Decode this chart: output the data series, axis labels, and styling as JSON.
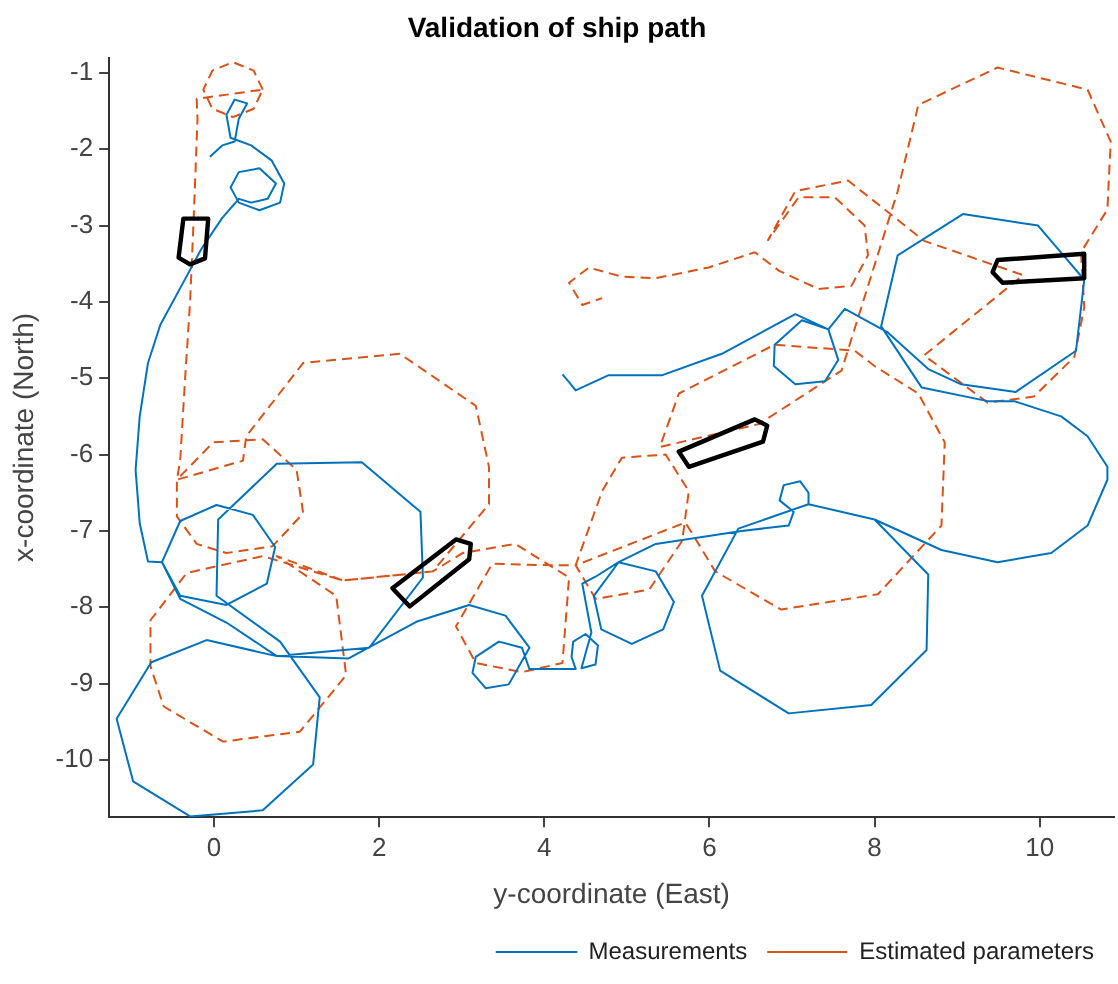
{
  "chart_data": {
    "type": "line",
    "title": "Validation of ship path",
    "xlabel": "y-coordinate (East)",
    "ylabel": "x-coordinate (North)",
    "xlim": [
      -1.27,
      10.9
    ],
    "ylim": [
      -10.75,
      -0.8
    ],
    "xticks": [
      0,
      2,
      4,
      6,
      8,
      10
    ],
    "yticks": [
      -1,
      -2,
      -3,
      -4,
      -5,
      -6,
      -7,
      -8,
      -9,
      -10
    ],
    "grid": false,
    "legend": "bottom right",
    "marker": "none",
    "series": [
      {
        "name": "Measurements",
        "color": "#0072bd",
        "line_style": "solid",
        "x": [
          -0.05,
          0.1,
          0.25,
          0.3,
          0.4,
          0.25,
          0.15,
          0.2,
          0.45,
          0.7,
          0.85,
          0.8,
          0.55,
          0.3,
          0.2,
          0.3,
          0.55,
          0.75,
          0.65,
          0.45,
          0.3,
          0.1,
          -0.15,
          -0.4,
          -0.65,
          -0.8,
          -0.9,
          -0.95,
          -0.9,
          -0.8,
          -0.63,
          -0.41,
          0.03,
          0.47,
          0.74,
          0.64,
          0.15,
          -0.41,
          -0.63,
          -0.41,
          0.15,
          0.76,
          1.88,
          2.53,
          2.5,
          1.79,
          0.76,
          0.05,
          0.03,
          0.8,
          1.28,
          1.2,
          0.59,
          -0.29,
          -0.98,
          -1.18,
          -0.76,
          -0.09,
          0.76,
          1.63,
          2.45,
          3.09,
          3.53,
          3.82,
          3.57,
          3.29,
          3.13,
          3.17,
          3.45,
          3.73,
          3.82,
          4.06,
          4.38,
          4.33,
          4.35,
          4.5,
          4.65,
          4.62,
          4.45,
          4.57,
          4.46,
          4.62,
          4.9,
          5.35,
          5.57,
          5.44,
          5.06,
          4.69,
          4.6,
          4.9,
          5.35,
          6.39,
          6.96,
          7.02,
          6.85,
          6.9,
          7.1,
          7.2,
          7.2,
          8.0,
          8.65,
          8.63,
          7.96,
          6.96,
          6.13,
          5.91,
          6.35,
          7.2,
          8.0,
          8.81,
          9.49,
          10.14,
          10.58,
          10.82,
          10.82,
          10.58,
          10.26,
          9.69,
          9.37,
          8.57,
          8.08,
          8.28,
          9.07,
          9.98,
          10.54,
          10.44,
          9.71,
          9.05,
          8.65,
          8.16,
          7.64,
          7.44,
          7.56,
          7.4,
          7.04,
          6.78,
          6.79,
          7.12,
          7.44,
          7.04,
          6.15,
          5.43,
          4.78,
          4.38,
          4.3,
          4.22
        ],
        "values": [
          -2.1,
          -1.95,
          -1.9,
          -1.6,
          -1.4,
          -1.35,
          -1.55,
          -1.85,
          -1.95,
          -2.15,
          -2.45,
          -2.7,
          -2.8,
          -2.7,
          -2.5,
          -2.3,
          -2.25,
          -2.45,
          -2.65,
          -2.7,
          -2.65,
          -2.9,
          -3.3,
          -3.8,
          -4.3,
          -4.8,
          -5.5,
          -6.2,
          -6.9,
          -7.4,
          -7.41,
          -6.87,
          -6.66,
          -6.79,
          -7.21,
          -7.69,
          -7.97,
          -7.85,
          -7.41,
          -7.89,
          -8.2,
          -8.64,
          -8.53,
          -7.61,
          -6.75,
          -6.1,
          -6.12,
          -6.85,
          -7.85,
          -8.45,
          -9.18,
          -10.06,
          -10.66,
          -10.74,
          -10.28,
          -9.46,
          -8.72,
          -8.43,
          -8.64,
          -8.67,
          -8.19,
          -7.97,
          -8.11,
          -8.53,
          -9.01,
          -9.06,
          -8.86,
          -8.65,
          -8.45,
          -8.53,
          -8.81,
          -8.81,
          -8.81,
          -8.65,
          -8.45,
          -8.35,
          -8.5,
          -8.75,
          -8.8,
          -8.33,
          -7.69,
          -7.6,
          -7.41,
          -7.53,
          -7.93,
          -8.29,
          -8.48,
          -8.29,
          -7.85,
          -7.41,
          -7.17,
          -7.0,
          -6.93,
          -6.75,
          -6.6,
          -6.4,
          -6.35,
          -6.5,
          -6.65,
          -6.85,
          -7.57,
          -8.56,
          -9.28,
          -9.39,
          -8.83,
          -7.85,
          -6.97,
          -6.65,
          -6.85,
          -7.25,
          -7.41,
          -7.29,
          -6.93,
          -6.33,
          -6.16,
          -5.76,
          -5.5,
          -5.3,
          -5.3,
          -5.12,
          -4.32,
          -3.39,
          -2.85,
          -3.0,
          -3.71,
          -4.64,
          -5.18,
          -5.08,
          -4.88,
          -4.4,
          -4.09,
          -4.36,
          -4.76,
          -5.04,
          -5.08,
          -4.84,
          -4.56,
          -4.24,
          -4.36,
          -4.16,
          -4.68,
          -4.96,
          -4.96,
          -5.16,
          -5.05,
          -4.95
        ]
      },
      {
        "name": "Estimated parameters",
        "color": "#d95319",
        "line_style": "dashed",
        "x": [
          0.59,
          0.48,
          0.23,
          -0.02,
          -0.13,
          -0.02,
          0.23,
          0.48,
          0.59,
          -0.21,
          -0.2,
          -0.25,
          -0.29,
          -0.35,
          -0.41,
          -0.45,
          -0.45,
          -0.21,
          0.15,
          0.71,
          1.08,
          1.0,
          0.59,
          -0.01,
          -0.45,
          0.35,
          0.39,
          1.08,
          2.25,
          3.17,
          3.33,
          3.33,
          2.65,
          1.56,
          0.59,
          -0.33,
          -0.77,
          -0.77,
          -0.61,
          0.11,
          1.04,
          1.6,
          1.48,
          0.76,
          1.56,
          2.65,
          3.01,
          3.65,
          4.3,
          4.22,
          3.73,
          3.17,
          2.93,
          3.37,
          4.06,
          4.38,
          4.7,
          4.94,
          5.47,
          5.75,
          5.67,
          5.27,
          4.62,
          4.38,
          5.71,
          6.07,
          6.87,
          8.04,
          8.81,
          8.85,
          8.53,
          8.0,
          7.76,
          6.79,
          5.63,
          5.4,
          6.6,
          7.6,
          8.28,
          8.53,
          9.49,
          10.58,
          10.86,
          10.82,
          10.5,
          10.54,
          10.42,
          9.93,
          9.37,
          8.6,
          9.8,
          8.6,
          7.68,
          7.04,
          6.71,
          7.08,
          7.52,
          7.88,
          7.92,
          7.72,
          7.32,
          6.84,
          6.55,
          5.99,
          5.35,
          4.94,
          4.54,
          4.3,
          4.46,
          4.7
        ],
        "values": [
          -1.22,
          -0.97,
          -0.86,
          -0.97,
          -1.22,
          -1.47,
          -1.58,
          -1.47,
          -1.22,
          -1.34,
          -1.6,
          -3.0,
          -4.0,
          -5.0,
          -6.08,
          -6.33,
          -6.81,
          -7.17,
          -7.29,
          -7.2,
          -6.77,
          -6.2,
          -5.8,
          -5.84,
          -6.33,
          -6.08,
          -5.76,
          -4.8,
          -4.68,
          -5.36,
          -6.16,
          -6.65,
          -7.53,
          -7.65,
          -7.33,
          -7.55,
          -8.17,
          -8.77,
          -9.3,
          -9.76,
          -9.63,
          -8.89,
          -7.85,
          -7.33,
          -7.65,
          -7.53,
          -7.29,
          -7.17,
          -7.61,
          -8.73,
          -8.85,
          -8.73,
          -8.25,
          -7.43,
          -7.45,
          -7.45,
          -6.48,
          -6.04,
          -6.0,
          -6.48,
          -7.13,
          -7.77,
          -7.89,
          -7.45,
          -6.89,
          -7.53,
          -8.03,
          -7.83,
          -6.93,
          -5.84,
          -5.2,
          -4.84,
          -4.64,
          -4.56,
          -5.2,
          -5.9,
          -5.6,
          -4.9,
          -2.55,
          -1.42,
          -0.93,
          -1.22,
          -1.9,
          -2.79,
          -3.35,
          -4.07,
          -4.72,
          -5.24,
          -5.32,
          -4.7,
          -3.65,
          -3.2,
          -2.41,
          -2.55,
          -3.19,
          -2.63,
          -2.63,
          -3.0,
          -3.39,
          -3.79,
          -3.83,
          -3.59,
          -3.35,
          -3.55,
          -3.69,
          -3.67,
          -3.55,
          -3.75,
          -4.04,
          -3.95
        ]
      }
    ]
  }
}
